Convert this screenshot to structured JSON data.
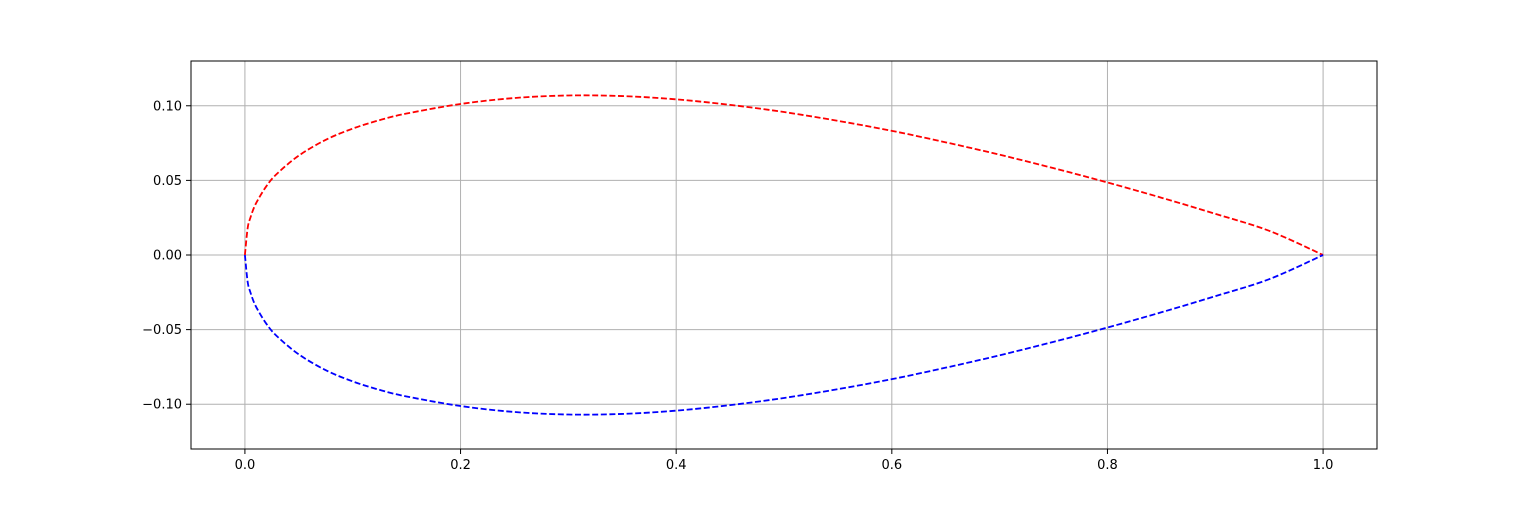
{
  "chart_data": {
    "type": "line",
    "title": "",
    "xlabel": "",
    "ylabel": "",
    "xlim": [
      -0.05,
      1.05
    ],
    "ylim": [
      -0.13,
      0.13
    ],
    "grid": true,
    "legend": "none",
    "x_ticks": [
      {
        "value": 0.0,
        "label": "0.0"
      },
      {
        "value": 0.2,
        "label": "0.2"
      },
      {
        "value": 0.4,
        "label": "0.4"
      },
      {
        "value": 0.6,
        "label": "0.6"
      },
      {
        "value": 0.8,
        "label": "0.8"
      },
      {
        "value": 1.0,
        "label": "1.0"
      }
    ],
    "y_ticks": [
      {
        "value": 0.1,
        "label": "0.10"
      },
      {
        "value": 0.05,
        "label": "0.05"
      },
      {
        "value": 0.0,
        "label": "0.00"
      },
      {
        "value": -0.05,
        "label": "−0.05"
      },
      {
        "value": -0.1,
        "label": "−0.10"
      }
    ],
    "x": [
      0.0,
      0.0025,
      0.005,
      0.01,
      0.02,
      0.03,
      0.05,
      0.075,
      0.1,
      0.125,
      0.15,
      0.2,
      0.25,
      0.3,
      0.35,
      0.4,
      0.45,
      0.5,
      0.55,
      0.6,
      0.65,
      0.7,
      0.75,
      0.8,
      0.85,
      0.9,
      0.95,
      1.0
    ],
    "series": [
      {
        "color": "#ff0000",
        "style": "dashed",
        "values": [
          0.0,
          0.0178,
          0.0248,
          0.0342,
          0.0462,
          0.0546,
          0.0666,
          0.0772,
          0.0847,
          0.0904,
          0.0948,
          0.1012,
          0.1052,
          0.1069,
          0.1065,
          0.1043,
          0.1006,
          0.0958,
          0.0899,
          0.0832,
          0.0755,
          0.0672,
          0.0582,
          0.0486,
          0.0384,
          0.0276,
          0.0162,
          0.0
        ]
      },
      {
        "color": "#0000ff",
        "style": "dashed",
        "values": [
          0.0,
          -0.0178,
          -0.0248,
          -0.0342,
          -0.0462,
          -0.0546,
          -0.0666,
          -0.0772,
          -0.0847,
          -0.0904,
          -0.0948,
          -0.1012,
          -0.1052,
          -0.1069,
          -0.1065,
          -0.1043,
          -0.1006,
          -0.0958,
          -0.0899,
          -0.0832,
          -0.0755,
          -0.0672,
          -0.0582,
          -0.0486,
          -0.0384,
          -0.0276,
          -0.0162,
          0.0
        ]
      }
    ]
  }
}
